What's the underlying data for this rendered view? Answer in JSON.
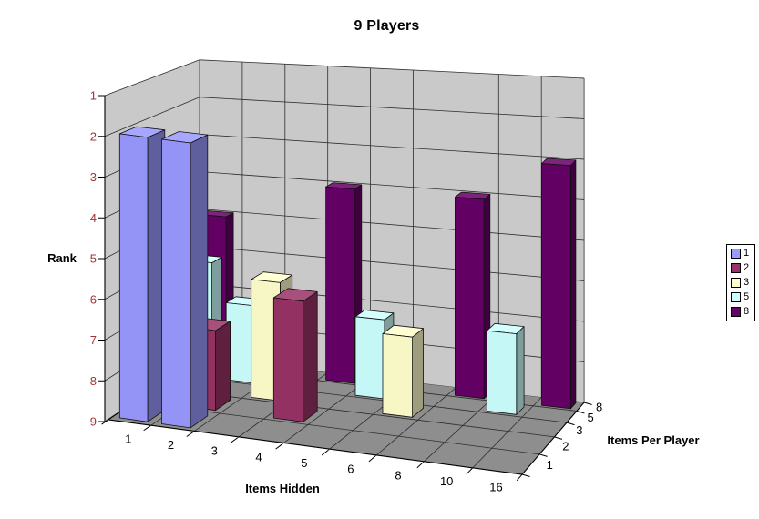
{
  "chart_data": {
    "type": "bar",
    "subtype": "3d-column",
    "title": "9 Players",
    "value_axis": {
      "label": "Rank",
      "min": 1,
      "max": 9,
      "reversed": true,
      "ticks": [
        "1",
        "2",
        "3",
        "4",
        "5",
        "6",
        "7",
        "8",
        "9"
      ],
      "tick_color": "#A03434"
    },
    "category_axis": {
      "label": "Items Hidden",
      "categories": [
        "1",
        "2",
        "3",
        "4",
        "5",
        "6",
        "8",
        "10",
        "16"
      ]
    },
    "depth_axis": {
      "label": "Items Per Player",
      "ticks": [
        "1",
        "2",
        "3",
        "5",
        "8"
      ]
    },
    "legend": {
      "position": "right",
      "entries": [
        {
          "label": "1",
          "color": "#9999FF"
        },
        {
          "label": "2",
          "color": "#993366"
        },
        {
          "label": "3",
          "color": "#FFFFCC"
        },
        {
          "label": "5",
          "color": "#CCFFFF"
        },
        {
          "label": "8",
          "color": "#660066"
        }
      ]
    },
    "series": [
      {
        "name": "1",
        "items_per_player": "1",
        "color": "#9999FF",
        "points": [
          {
            "items_hidden": "1",
            "rank": 2
          },
          {
            "items_hidden": "2",
            "rank": 2
          }
        ]
      },
      {
        "name": "2",
        "items_per_player": "2",
        "color": "#993366",
        "points": [
          {
            "items_hidden": "1",
            "rank": 8
          },
          {
            "items_hidden": "2",
            "rank": 7
          },
          {
            "items_hidden": "4",
            "rank": 6
          }
        ]
      },
      {
        "name": "3",
        "items_per_player": "3",
        "color": "#FFFFCC",
        "points": [
          {
            "items_hidden": "3",
            "rank": 6
          },
          {
            "items_hidden": "6",
            "rank": 7
          }
        ]
      },
      {
        "name": "5",
        "items_per_player": "5",
        "color": "#CCFFFF",
        "points": [
          {
            "items_hidden": "1",
            "rank": 6
          },
          {
            "items_hidden": "2",
            "rank": 7
          },
          {
            "items_hidden": "5",
            "rank": 7
          },
          {
            "items_hidden": "10",
            "rank": 7
          }
        ]
      },
      {
        "name": "8",
        "items_per_player": "8",
        "color": "#660066",
        "points": [
          {
            "items_hidden": "1",
            "rank": 5
          },
          {
            "items_hidden": "4",
            "rank": 4
          },
          {
            "items_hidden": "8",
            "rank": 4
          },
          {
            "items_hidden": "16",
            "rank": 3
          }
        ]
      }
    ],
    "colors": {
      "background": "#FFFFFF",
      "wall": "#C9C9C9",
      "floor": "#8E8E8E",
      "gridline": "#2E2E2E",
      "axis": "#000000",
      "text": "#000000",
      "value_tick_label": "#A03434"
    }
  }
}
